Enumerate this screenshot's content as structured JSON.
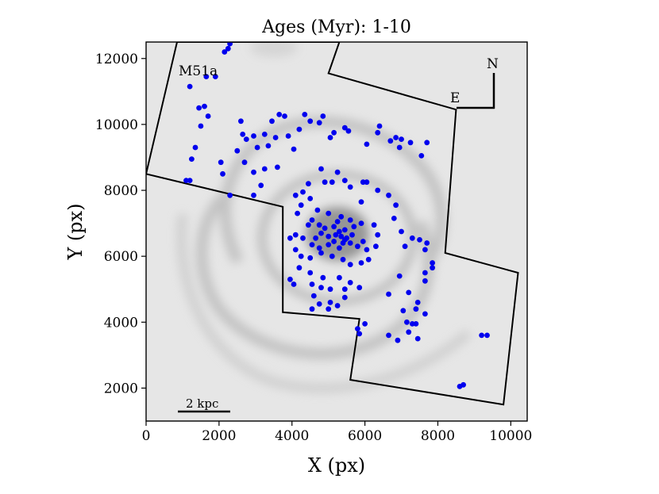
{
  "chart_data": {
    "type": "scatter",
    "title": "Ages (Myr): 1-10",
    "xlabel": "X (px)",
    "ylabel": "Y (px)",
    "xlim": [
      0,
      10450
    ],
    "ylim": [
      1000,
      12500
    ],
    "xticks": [
      0,
      2000,
      4000,
      6000,
      8000,
      10000
    ],
    "yticks": [
      2000,
      4000,
      6000,
      8000,
      10000,
      12000
    ],
    "annotations": {
      "galaxy": "M51a",
      "north": "N",
      "east": "E",
      "scalebar": "2 kpc"
    },
    "colors": {
      "points": "#0000ee",
      "background": "#e6e6e6",
      "outline": "#000000"
    },
    "footprint": [
      [
        850,
        12500
      ],
      [
        0,
        8500
      ],
      [
        3750,
        7500
      ],
      [
        3750,
        4300
      ],
      [
        5850,
        4100
      ],
      [
        5600,
        2250
      ],
      [
        9800,
        1500
      ],
      [
        10200,
        5500
      ],
      [
        8200,
        6100
      ],
      [
        8500,
        10450
      ],
      [
        5000,
        11550
      ],
      [
        5300,
        12500
      ]
    ],
    "series": [
      {
        "points": [
          [
            2300,
            12450
          ],
          [
            2150,
            12200
          ],
          [
            2250,
            12300
          ],
          [
            1650,
            11450
          ],
          [
            1900,
            11450
          ],
          [
            1200,
            11150
          ],
          [
            1450,
            10500
          ],
          [
            1600,
            10550
          ],
          [
            1700,
            10250
          ],
          [
            1500,
            9950
          ],
          [
            1350,
            9300
          ],
          [
            1250,
            8950
          ],
          [
            1100,
            8300
          ],
          [
            1200,
            8300
          ],
          [
            2100,
            8500
          ],
          [
            2300,
            7850
          ],
          [
            2500,
            9200
          ],
          [
            2050,
            8850
          ],
          [
            2650,
            9700
          ],
          [
            2750,
            9550
          ],
          [
            2950,
            9650
          ],
          [
            3250,
            9700
          ],
          [
            3050,
            9300
          ],
          [
            3350,
            9350
          ],
          [
            3550,
            9600
          ],
          [
            2700,
            8850
          ],
          [
            2950,
            8550
          ],
          [
            3250,
            8650
          ],
          [
            3600,
            8700
          ],
          [
            3150,
            8150
          ],
          [
            2950,
            7850
          ],
          [
            2600,
            10100
          ],
          [
            3450,
            10100
          ],
          [
            3650,
            10300
          ],
          [
            3800,
            10250
          ],
          [
            3900,
            9650
          ],
          [
            4050,
            9250
          ],
          [
            4350,
            10300
          ],
          [
            4500,
            10100
          ],
          [
            4750,
            10050
          ],
          [
            4850,
            10250
          ],
          [
            4200,
            9850
          ],
          [
            5050,
            9600
          ],
          [
            5150,
            9750
          ],
          [
            5450,
            9900
          ],
          [
            5550,
            9800
          ],
          [
            4800,
            8650
          ],
          [
            5250,
            8550
          ],
          [
            5100,
            8250
          ],
          [
            4900,
            8250
          ],
          [
            5450,
            8300
          ],
          [
            5950,
            8250
          ],
          [
            6050,
            8250
          ],
          [
            5600,
            8100
          ],
          [
            5900,
            7650
          ],
          [
            6350,
            8000
          ],
          [
            6050,
            9400
          ],
          [
            6400,
            9950
          ],
          [
            6350,
            9750
          ],
          [
            6700,
            9500
          ],
          [
            6850,
            9600
          ],
          [
            7000,
            9550
          ],
          [
            6950,
            9300
          ],
          [
            7250,
            9450
          ],
          [
            7550,
            9050
          ],
          [
            7700,
            9450
          ],
          [
            4450,
            8200
          ],
          [
            4300,
            7950
          ],
          [
            4100,
            7850
          ],
          [
            4500,
            7750
          ],
          [
            4250,
            7550
          ],
          [
            4150,
            7300
          ],
          [
            4700,
            7400
          ],
          [
            5000,
            7300
          ],
          [
            5350,
            7200
          ],
          [
            5250,
            7050
          ],
          [
            4750,
            6950
          ],
          [
            5450,
            6800
          ],
          [
            5650,
            6650
          ],
          [
            5150,
            6900
          ],
          [
            4800,
            6700
          ],
          [
            4650,
            6550
          ],
          [
            5000,
            6600
          ],
          [
            5400,
            6400
          ],
          [
            5600,
            6400
          ],
          [
            5800,
            6300
          ],
          [
            5950,
            6450
          ],
          [
            6050,
            6200
          ],
          [
            5300,
            6250
          ],
          [
            5000,
            6350
          ],
          [
            4750,
            6250
          ],
          [
            4550,
            6350
          ],
          [
            4300,
            6550
          ],
          [
            4100,
            6650
          ],
          [
            3950,
            6550
          ],
          [
            4100,
            6200
          ],
          [
            4250,
            6000
          ],
          [
            4500,
            5950
          ],
          [
            4800,
            6100
          ],
          [
            5100,
            6000
          ],
          [
            5400,
            5900
          ],
          [
            5600,
            5750
          ],
          [
            5900,
            5800
          ],
          [
            6100,
            5900
          ],
          [
            4200,
            5650
          ],
          [
            4500,
            5500
          ],
          [
            4850,
            5350
          ],
          [
            5300,
            5350
          ],
          [
            5600,
            5200
          ],
          [
            4550,
            5150
          ],
          [
            4050,
            5150
          ],
          [
            3950,
            5300
          ],
          [
            4800,
            5050
          ],
          [
            5050,
            5000
          ],
          [
            5450,
            5000
          ],
          [
            5850,
            5050
          ],
          [
            4600,
            4800
          ],
          [
            4750,
            4550
          ],
          [
            5050,
            4600
          ],
          [
            5450,
            4750
          ],
          [
            4550,
            4400
          ],
          [
            5000,
            4400
          ],
          [
            5250,
            4500
          ],
          [
            6650,
            7850
          ],
          [
            6850,
            7550
          ],
          [
            6800,
            7150
          ],
          [
            7000,
            6750
          ],
          [
            7300,
            6550
          ],
          [
            7100,
            6300
          ],
          [
            7500,
            6500
          ],
          [
            7700,
            6400
          ],
          [
            7650,
            6200
          ],
          [
            7850,
            5800
          ],
          [
            7850,
            5650
          ],
          [
            7650,
            5500
          ],
          [
            7650,
            5250
          ],
          [
            6950,
            5400
          ],
          [
            6650,
            4850
          ],
          [
            7200,
            4900
          ],
          [
            7450,
            4600
          ],
          [
            7400,
            4400
          ],
          [
            7650,
            4250
          ],
          [
            7400,
            3950
          ],
          [
            7150,
            4000
          ],
          [
            7050,
            4350
          ],
          [
            6650,
            3600
          ],
          [
            6900,
            3450
          ],
          [
            5800,
            3800
          ],
          [
            5850,
            3650
          ],
          [
            6000,
            3950
          ],
          [
            7300,
            3950
          ],
          [
            7200,
            3700
          ],
          [
            7450,
            3500
          ],
          [
            9200,
            3600
          ],
          [
            9350,
            3600
          ],
          [
            8600,
            2050
          ],
          [
            8700,
            2100
          ],
          [
            5200,
            6650
          ],
          [
            5350,
            6600
          ],
          [
            5500,
            6550
          ],
          [
            5300,
            6750
          ],
          [
            5450,
            6500
          ],
          [
            5150,
            6450
          ],
          [
            5700,
            6900
          ],
          [
            4900,
            6850
          ],
          [
            5600,
            7100
          ],
          [
            4550,
            7100
          ],
          [
            6250,
            6950
          ],
          [
            6350,
            6650
          ],
          [
            6300,
            6300
          ],
          [
            4450,
            6950
          ],
          [
            5900,
            7000
          ]
        ]
      }
    ]
  }
}
